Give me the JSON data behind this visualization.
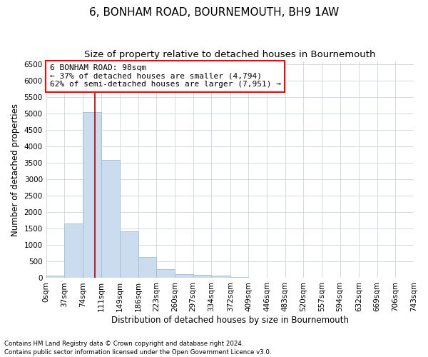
{
  "title": "6, BONHAM ROAD, BOURNEMOUTH, BH9 1AW",
  "subtitle": "Size of property relative to detached houses in Bournemouth",
  "xlabel": "Distribution of detached houses by size in Bournemouth",
  "ylabel": "Number of detached properties",
  "footnote1": "Contains HM Land Registry data © Crown copyright and database right 2024.",
  "footnote2": "Contains public sector information licensed under the Open Government Licence v3.0.",
  "annotation_title": "6 BONHAM ROAD: 98sqm",
  "annotation_line1": "← 37% of detached houses are smaller (4,794)",
  "annotation_line2": "62% of semi-detached houses are larger (7,951) →",
  "bar_color": "#ccdcef",
  "bar_edge_color": "#a0bcd8",
  "marker_color": "#aa0000",
  "marker_sqm": 98,
  "bin_edges": [
    0,
    37,
    74,
    111,
    149,
    186,
    223,
    260,
    297,
    334,
    372,
    409,
    446,
    483,
    520,
    557,
    594,
    632,
    669,
    706,
    743
  ],
  "bin_labels": [
    "0sqm",
    "37sqm",
    "74sqm",
    "111sqm",
    "149sqm",
    "186sqm",
    "223sqm",
    "260sqm",
    "297sqm",
    "334sqm",
    "372sqm",
    "409sqm",
    "446sqm",
    "483sqm",
    "520sqm",
    "557sqm",
    "594sqm",
    "632sqm",
    "669sqm",
    "706sqm",
    "743sqm"
  ],
  "bar_heights": [
    80,
    1650,
    5050,
    3600,
    1420,
    640,
    270,
    120,
    95,
    65,
    30,
    0,
    0,
    0,
    0,
    0,
    0,
    0,
    0,
    0
  ],
  "ylim": [
    0,
    6600
  ],
  "yticks": [
    0,
    500,
    1000,
    1500,
    2000,
    2500,
    3000,
    3500,
    4000,
    4500,
    5000,
    5500,
    6000,
    6500
  ],
  "background_color": "#ffffff",
  "grid_color": "#cdd5e0",
  "title_fontsize": 11,
  "subtitle_fontsize": 9.5,
  "label_fontsize": 8.5,
  "tick_fontsize": 7.5,
  "annot_fontsize": 8
}
